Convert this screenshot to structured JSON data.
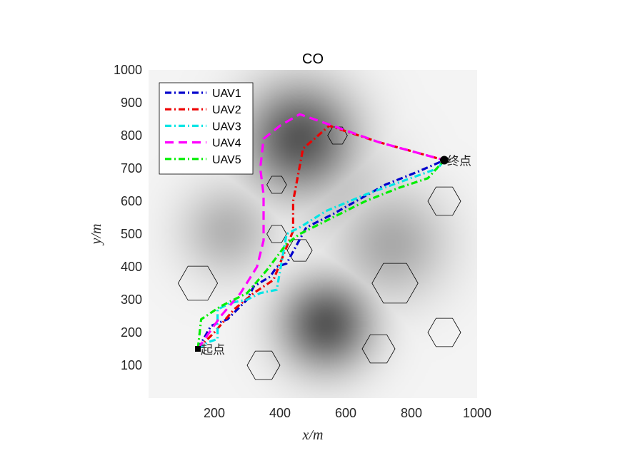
{
  "chart_data": {
    "type": "line",
    "title": "CO",
    "xlabel": "x/m",
    "ylabel": "y/m",
    "xlim": [
      0,
      1000
    ],
    "ylim": [
      0,
      1000
    ],
    "xticks": [
      200,
      400,
      600,
      800,
      1000
    ],
    "yticks": [
      100,
      200,
      300,
      400,
      500,
      600,
      700,
      800,
      900,
      1000
    ],
    "xtick_labels": [
      "200",
      "400",
      "600",
      "800",
      "1000"
    ],
    "ytick_labels": [
      "100",
      "200",
      "300",
      "400",
      "500",
      "600",
      "700",
      "800",
      "900",
      "1000"
    ],
    "grid": false,
    "legend_position": "top-left",
    "background": "grayscale threat field",
    "start": {
      "x": 150,
      "y": 150,
      "label": "起点"
    },
    "end": {
      "x": 900,
      "y": 725,
      "label": "终点"
    },
    "series": [
      {
        "name": "UAV1",
        "color": "#0000cc",
        "style": "dashdot",
        "points": [
          [
            150,
            150
          ],
          [
            190,
            220
          ],
          [
            240,
            240
          ],
          [
            300,
            300
          ],
          [
            320,
            340
          ],
          [
            370,
            370
          ],
          [
            390,
            400
          ],
          [
            420,
            410
          ],
          [
            480,
            520
          ],
          [
            560,
            560
          ],
          [
            720,
            650
          ],
          [
            820,
            690
          ],
          [
            900,
            725
          ]
        ]
      },
      {
        "name": "UAV2",
        "color": "#ee0000",
        "style": "dashdot",
        "points": [
          [
            150,
            150
          ],
          [
            200,
            200
          ],
          [
            260,
            270
          ],
          [
            320,
            320
          ],
          [
            380,
            360
          ],
          [
            420,
            460
          ],
          [
            440,
            510
          ],
          [
            440,
            600
          ],
          [
            470,
            760
          ],
          [
            550,
            830
          ],
          [
            700,
            780
          ],
          [
            900,
            725
          ]
        ]
      },
      {
        "name": "UAV3",
        "color": "#00e5e5",
        "style": "dashdot",
        "points": [
          [
            150,
            150
          ],
          [
            180,
            170
          ],
          [
            210,
            180
          ],
          [
            210,
            270
          ],
          [
            250,
            290
          ],
          [
            300,
            300
          ],
          [
            340,
            320
          ],
          [
            390,
            330
          ],
          [
            420,
            500
          ],
          [
            460,
            520
          ],
          [
            540,
            570
          ],
          [
            660,
            620
          ],
          [
            880,
            700
          ],
          [
            900,
            725
          ]
        ]
      },
      {
        "name": "UAV4",
        "color": "#ff00ff",
        "style": "dash",
        "points": [
          [
            150,
            150
          ],
          [
            220,
            250
          ],
          [
            280,
            320
          ],
          [
            330,
            400
          ],
          [
            350,
            480
          ],
          [
            350,
            620
          ],
          [
            340,
            700
          ],
          [
            350,
            790
          ],
          [
            400,
            830
          ],
          [
            460,
            865
          ],
          [
            560,
            830
          ],
          [
            700,
            780
          ],
          [
            900,
            725
          ]
        ]
      },
      {
        "name": "UAV5",
        "color": "#00ee00",
        "style": "dashdot",
        "points": [
          [
            150,
            150
          ],
          [
            160,
            240
          ],
          [
            220,
            280
          ],
          [
            300,
            320
          ],
          [
            360,
            390
          ],
          [
            420,
            470
          ],
          [
            460,
            500
          ],
          [
            540,
            540
          ],
          [
            660,
            600
          ],
          [
            760,
            640
          ],
          [
            850,
            670
          ],
          [
            900,
            725
          ]
        ]
      }
    ],
    "obstacles": [
      {
        "x": 390,
        "y": 650,
        "r": 30
      },
      {
        "x": 390,
        "y": 500,
        "r": 30
      },
      {
        "x": 575,
        "y": 800,
        "r": 30
      },
      {
        "x": 460,
        "y": 450,
        "r": 38
      },
      {
        "x": 150,
        "y": 350,
        "r": 60
      },
      {
        "x": 750,
        "y": 350,
        "r": 70
      },
      {
        "x": 900,
        "y": 600,
        "r": 50
      },
      {
        "x": 900,
        "y": 200,
        "r": 50
      },
      {
        "x": 700,
        "y": 150,
        "r": 50
      },
      {
        "x": 350,
        "y": 100,
        "r": 50
      }
    ],
    "threats": [
      {
        "x": 460,
        "y": 790,
        "s": 120,
        "w": 0.85
      },
      {
        "x": 540,
        "y": 225,
        "s": 100,
        "w": 0.85
      },
      {
        "x": 240,
        "y": 510,
        "s": 100,
        "w": 0.35
      },
      {
        "x": 740,
        "y": 470,
        "s": 120,
        "w": 0.4
      },
      {
        "x": 580,
        "y": 640,
        "s": 130,
        "w": 0.25
      }
    ]
  }
}
